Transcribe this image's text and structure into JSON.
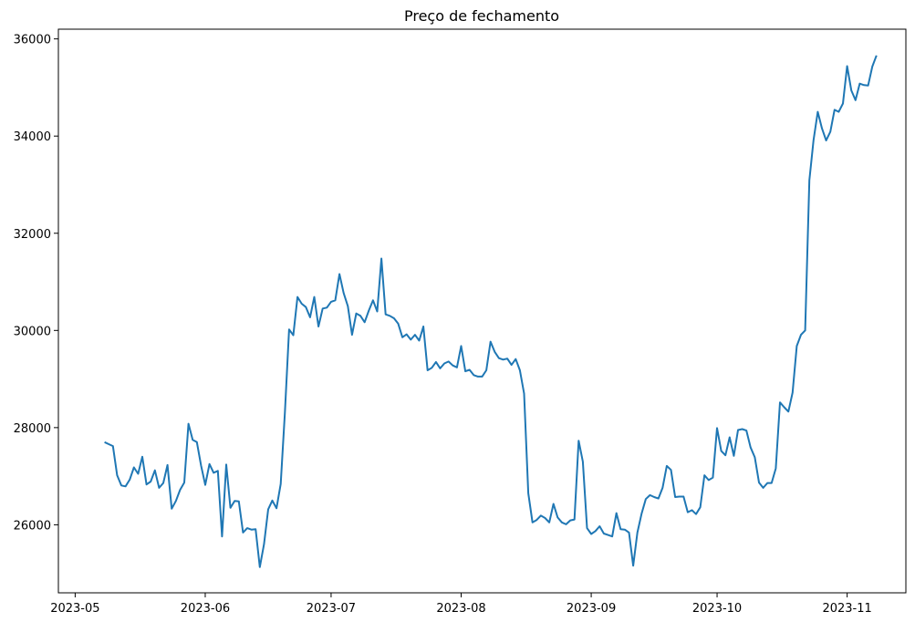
{
  "chart_data": {
    "type": "line",
    "title": "Preço de fechamento",
    "xlabel": "",
    "ylabel": "",
    "ylim": [
      24600,
      36200
    ],
    "y_ticks": [
      26000,
      28000,
      30000,
      32000,
      34000,
      36000
    ],
    "x_ticks": [
      "2023-05",
      "2023-06",
      "2023-07",
      "2023-08",
      "2023-09",
      "2023-10",
      "2023-11"
    ],
    "xlim": [
      "2023-04-27",
      "2023-11-15"
    ],
    "grid": false,
    "legend": "none",
    "color": "#1f77b4",
    "series": [
      {
        "x": [
          "2023-05-08",
          "2023-05-09",
          "2023-05-10",
          "2023-05-11",
          "2023-05-12",
          "2023-05-13",
          "2023-05-14",
          "2023-05-15",
          "2023-05-16",
          "2023-05-17",
          "2023-05-18",
          "2023-05-19",
          "2023-05-20",
          "2023-05-21",
          "2023-05-22",
          "2023-05-23",
          "2023-05-24",
          "2023-05-25",
          "2023-05-26",
          "2023-05-27",
          "2023-05-28",
          "2023-05-29",
          "2023-05-30",
          "2023-05-31",
          "2023-06-01",
          "2023-06-02",
          "2023-06-03",
          "2023-06-04",
          "2023-06-05",
          "2023-06-06",
          "2023-06-07",
          "2023-06-08",
          "2023-06-09",
          "2023-06-10",
          "2023-06-11",
          "2023-06-12",
          "2023-06-13",
          "2023-06-14",
          "2023-06-15",
          "2023-06-16",
          "2023-06-17",
          "2023-06-18",
          "2023-06-19",
          "2023-06-20",
          "2023-06-21",
          "2023-06-22",
          "2023-06-23",
          "2023-06-24",
          "2023-06-25",
          "2023-06-26",
          "2023-06-27",
          "2023-06-28",
          "2023-06-29",
          "2023-06-30",
          "2023-07-01",
          "2023-07-02",
          "2023-07-03",
          "2023-07-04",
          "2023-07-05",
          "2023-07-06",
          "2023-07-07",
          "2023-07-08",
          "2023-07-09",
          "2023-07-10",
          "2023-07-11",
          "2023-07-12",
          "2023-07-13",
          "2023-07-14",
          "2023-07-15",
          "2023-07-16",
          "2023-07-17",
          "2023-07-18",
          "2023-07-19",
          "2023-07-20",
          "2023-07-21",
          "2023-07-22",
          "2023-07-23",
          "2023-07-24",
          "2023-07-25",
          "2023-07-26",
          "2023-07-27",
          "2023-07-28",
          "2023-07-29",
          "2023-07-30",
          "2023-07-31",
          "2023-08-01",
          "2023-08-02",
          "2023-08-03",
          "2023-08-04",
          "2023-08-05",
          "2023-08-06",
          "2023-08-07",
          "2023-08-08",
          "2023-08-09",
          "2023-08-10",
          "2023-08-11",
          "2023-08-12",
          "2023-08-13",
          "2023-08-14",
          "2023-08-15",
          "2023-08-16",
          "2023-08-17",
          "2023-08-18",
          "2023-08-19",
          "2023-08-20",
          "2023-08-21",
          "2023-08-22",
          "2023-08-23",
          "2023-08-24",
          "2023-08-25",
          "2023-08-26",
          "2023-08-27",
          "2023-08-28",
          "2023-08-29",
          "2023-08-30",
          "2023-08-31",
          "2023-09-01",
          "2023-09-02",
          "2023-09-03",
          "2023-09-04",
          "2023-09-05",
          "2023-09-06",
          "2023-09-07",
          "2023-09-08",
          "2023-09-09",
          "2023-09-10",
          "2023-09-11",
          "2023-09-12",
          "2023-09-13",
          "2023-09-14",
          "2023-09-15",
          "2023-09-16",
          "2023-09-17",
          "2023-09-18",
          "2023-09-19",
          "2023-09-20",
          "2023-09-21",
          "2023-09-22",
          "2023-09-23",
          "2023-09-24",
          "2023-09-25",
          "2023-09-26",
          "2023-09-27",
          "2023-09-28",
          "2023-09-29",
          "2023-09-30",
          "2023-10-01",
          "2023-10-02",
          "2023-10-03",
          "2023-10-04",
          "2023-10-05",
          "2023-10-06",
          "2023-10-07",
          "2023-10-08",
          "2023-10-09",
          "2023-10-10",
          "2023-10-11",
          "2023-10-12",
          "2023-10-13",
          "2023-10-14",
          "2023-10-15",
          "2023-10-16",
          "2023-10-17",
          "2023-10-18",
          "2023-10-19",
          "2023-10-20",
          "2023-10-21",
          "2023-10-22",
          "2023-10-23",
          "2023-10-24",
          "2023-10-25",
          "2023-10-26",
          "2023-10-27",
          "2023-10-28",
          "2023-10-29",
          "2023-10-30",
          "2023-10-31",
          "2023-11-01",
          "2023-11-02",
          "2023-11-03",
          "2023-11-04",
          "2023-11-05",
          "2023-11-06",
          "2023-11-07",
          "2023-11-08"
        ],
        "values": [
          27700,
          27660,
          27620,
          27020,
          26810,
          26790,
          26930,
          27180,
          27050,
          27400,
          26830,
          26890,
          27120,
          26760,
          26860,
          27230,
          26330,
          26490,
          26720,
          26870,
          28080,
          27750,
          27700,
          27220,
          26820,
          27250,
          27070,
          27110,
          25760,
          27240,
          26350,
          26490,
          26480,
          25840,
          25930,
          25900,
          25910,
          25130,
          25600,
          26320,
          26500,
          26340,
          26840,
          28310,
          30020,
          29900,
          30690,
          30550,
          30480,
          30270,
          30690,
          30080,
          30450,
          30470,
          30590,
          30620,
          31160,
          30770,
          30500,
          29910,
          30350,
          30300,
          30170,
          30410,
          30620,
          30390,
          31480,
          30330,
          30300,
          30250,
          30140,
          29860,
          29920,
          29810,
          29910,
          29790,
          30080,
          29180,
          29230,
          29350,
          29220,
          29320,
          29360,
          29280,
          29240,
          29680,
          29160,
          29190,
          29080,
          29050,
          29050,
          29180,
          29770,
          29560,
          29430,
          29400,
          29420,
          29290,
          29410,
          29180,
          28700,
          26650,
          26050,
          26100,
          26190,
          26140,
          26050,
          26430,
          26150,
          26050,
          26010,
          26090,
          26110,
          27730,
          27300,
          25930,
          25810,
          25870,
          25970,
          25820,
          25790,
          25760,
          26240,
          25910,
          25900,
          25840,
          25160,
          25840,
          26230,
          26530,
          26610,
          26570,
          26540,
          26760,
          27210,
          27130,
          26570,
          26580,
          26580,
          26260,
          26300,
          26220,
          26360,
          27020,
          26920,
          26970,
          27990,
          27520,
          27430,
          27800,
          27420,
          27950,
          27970,
          27940,
          27590,
          27390,
          26870,
          26760,
          26860,
          26860,
          27160,
          28520,
          28420,
          28330,
          28720,
          29680,
          29910,
          30000,
          33090,
          33920,
          34500,
          34160,
          33910,
          34090,
          34540,
          34500,
          34670,
          35440,
          34940,
          34740,
          35080,
          35050,
          35040,
          35430,
          35660
        ]
      }
    ]
  }
}
